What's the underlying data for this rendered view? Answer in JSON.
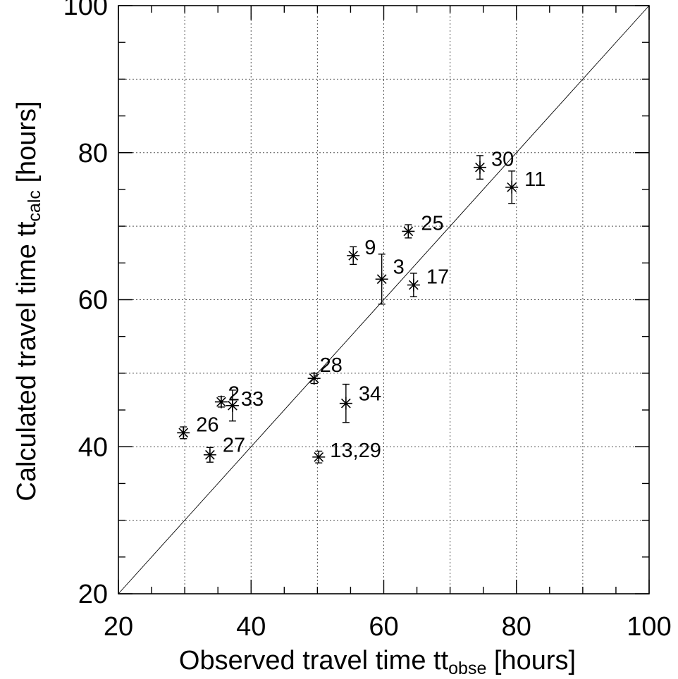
{
  "chart_data": {
    "type": "scatter",
    "title": "",
    "xlabel": {
      "main": "Observed travel time tt",
      "sub": "obse",
      "unit": " [hours]"
    },
    "ylabel": {
      "main": "Calculated travel time tt",
      "sub": "calc",
      "unit": " [hours]"
    },
    "xlim": [
      20,
      100
    ],
    "ylim": [
      20,
      100
    ],
    "x_ticks": [
      20,
      40,
      60,
      80,
      100
    ],
    "y_ticks": [
      20,
      40,
      60,
      80,
      100
    ],
    "x_tick_labels": [
      "20",
      "40",
      "60",
      "80",
      "100"
    ],
    "y_tick_labels": [
      "20",
      "40",
      "60",
      "80",
      "100"
    ],
    "grid": true,
    "reference_line": "y = x",
    "points": [
      {
        "label": "30",
        "x": 74.5,
        "y": 78.0,
        "err": 1.6
      },
      {
        "label": "11",
        "x": 79.3,
        "y": 75.3,
        "err": 2.2
      },
      {
        "label": "25",
        "x": 63.7,
        "y": 69.3,
        "err": 0.9
      },
      {
        "label": "9",
        "x": 55.4,
        "y": 66.0,
        "err": 1.2
      },
      {
        "label": "3",
        "x": 59.7,
        "y": 62.8,
        "err": 3.4
      },
      {
        "label": "17",
        "x": 64.5,
        "y": 62.0,
        "err": 1.6
      },
      {
        "label": "28",
        "x": 49.5,
        "y": 49.3,
        "err": 0.7
      },
      {
        "label": "34",
        "x": 54.3,
        "y": 45.9,
        "err": 2.6
      },
      {
        "label": "2",
        "x": 35.5,
        "y": 46.1,
        "err": 0.7
      },
      {
        "label": "33",
        "x": 37.2,
        "y": 45.6,
        "err": 2.1
      },
      {
        "label": "26",
        "x": 29.8,
        "y": 41.9,
        "err": 0.8
      },
      {
        "label": "27",
        "x": 33.8,
        "y": 38.9,
        "err": 1.0
      },
      {
        "label": "13,29",
        "x": 50.2,
        "y": 38.6,
        "err": 0.8
      }
    ]
  }
}
